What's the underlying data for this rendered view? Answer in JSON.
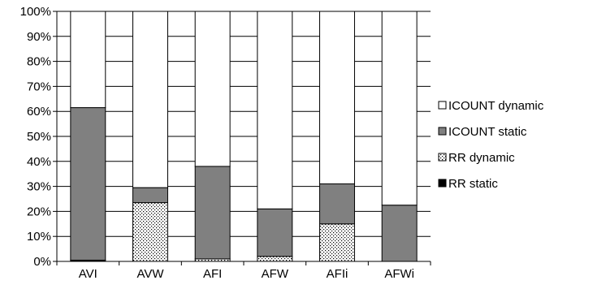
{
  "chart_data": {
    "type": "bar",
    "stacked": true,
    "normalized": true,
    "title": "",
    "xlabel": "",
    "ylabel": "",
    "ylim": [
      0,
      100
    ],
    "y_ticks": [
      "0%",
      "10%",
      "20%",
      "30%",
      "40%",
      "50%",
      "60%",
      "70%",
      "80%",
      "90%",
      "100%"
    ],
    "grid": true,
    "legend_position": "right",
    "categories": [
      "AVI",
      "AVW",
      "AFI",
      "AFW",
      "AFIi",
      "AFWi"
    ],
    "series": [
      {
        "name": "RR static",
        "values": [
          0.5,
          0,
          0,
          0,
          0,
          0
        ],
        "color": "#000000",
        "pattern": "solid"
      },
      {
        "name": "RR dynamic",
        "values": [
          0,
          23.5,
          1,
          2,
          15,
          0
        ],
        "color": "#ffffff",
        "pattern": "dots"
      },
      {
        "name": "ICOUNT static",
        "values": [
          61,
          6,
          37,
          19,
          16,
          22.5
        ],
        "color": "#808080",
        "pattern": "solid"
      },
      {
        "name": "ICOUNT dynamic",
        "values": [
          38.5,
          70.5,
          62,
          79,
          69,
          77.5
        ],
        "color": "#ffffff",
        "pattern": "solid"
      }
    ],
    "legend_order": [
      "ICOUNT dynamic",
      "ICOUNT static",
      "RR dynamic",
      "RR static"
    ]
  }
}
